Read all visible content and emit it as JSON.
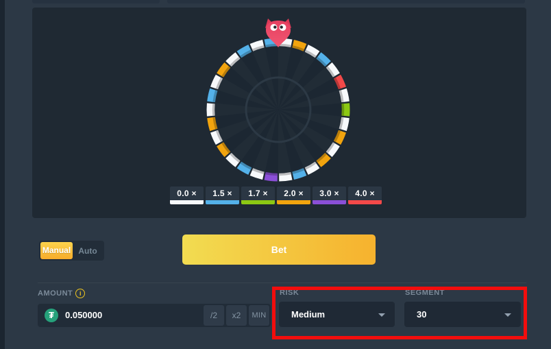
{
  "game": {
    "name": "Wheel",
    "pointer_character": "owl",
    "panel_bg": "#1f2933"
  },
  "wheel": {
    "segment_count": 30,
    "segments": [
      "white",
      "orange",
      "white",
      "blue",
      "white",
      "red",
      "white",
      "green",
      "white",
      "orange",
      "white",
      "orange",
      "white",
      "blue",
      "white",
      "purple",
      "white",
      "blue",
      "white",
      "orange",
      "white",
      "orange",
      "white",
      "blue",
      "white",
      "orange",
      "white",
      "blue",
      "white",
      "blue"
    ],
    "colors": {
      "white": "#f7f9fb",
      "blue": "#54b1e9",
      "green": "#8cc813",
      "orange": "#f2a40e",
      "purple": "#8a4fd7",
      "red": "#f34949"
    },
    "color_multipliers": {
      "white": "0.0",
      "blue": "1.5",
      "green": "1.7",
      "orange": "2.0",
      "purple": "3.0",
      "red": "4.0"
    }
  },
  "legend": {
    "items": [
      {
        "label": "0.0 ×",
        "color_key": "white"
      },
      {
        "label": "1.5 ×",
        "color_key": "blue"
      },
      {
        "label": "1.7 ×",
        "color_key": "green"
      },
      {
        "label": "2.0 ×",
        "color_key": "orange"
      },
      {
        "label": "3.0 ×",
        "color_key": "purple"
      },
      {
        "label": "4.0 ×",
        "color_key": "red"
      }
    ]
  },
  "controls": {
    "mode_toggle": {
      "manual_label": "Manual",
      "auto_label": "Auto",
      "selected": "Manual"
    },
    "bet_button_label": "Bet",
    "amount": {
      "label": "AMOUNT",
      "value": "0.050000",
      "currency_icon": "tether",
      "currency_symbol": "₮",
      "currency_color": "#26a17b",
      "buttons": [
        "/2",
        "x2",
        "MIN"
      ]
    },
    "risk": {
      "label": "RISK",
      "value": "Medium"
    },
    "segment": {
      "label": "SEGMENT",
      "value": "30"
    }
  },
  "annotation": {
    "shape": "rectangle",
    "color": "#f30d0d",
    "highlights": "risk and segment selectors"
  }
}
